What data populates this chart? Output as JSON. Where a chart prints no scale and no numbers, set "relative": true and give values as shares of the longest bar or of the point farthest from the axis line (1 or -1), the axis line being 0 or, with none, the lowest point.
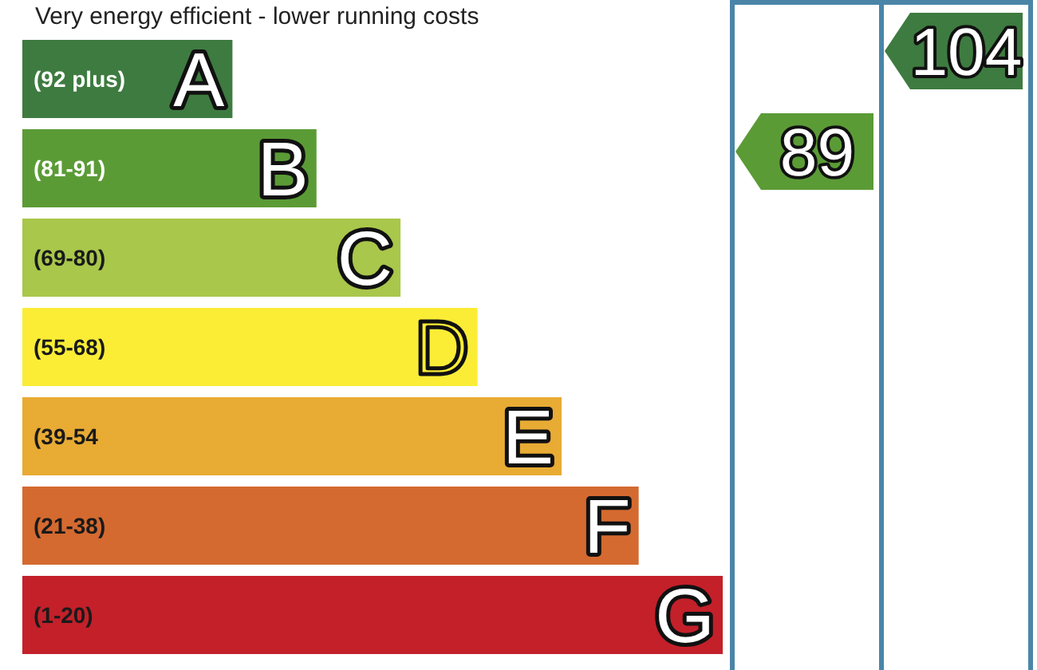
{
  "chart_data": {
    "type": "bar",
    "orientation": "horizontal",
    "relative": true,
    "title": "Very energy efficient - lower running costs",
    "categories": [
      "(92 plus)",
      "(81-91)",
      "(69-80)",
      "(55-68)",
      "(39-54",
      "(21-38)",
      "(1-20)"
    ],
    "values": [
      0.3,
      0.42,
      0.54,
      0.65,
      0.77,
      0.88,
      1
    ],
    "colors": [
      "#3e7b40",
      "#5b9b36",
      "#a9c74b",
      "#fbed36",
      "#e8ab34",
      "#d46a30",
      "#c3202a"
    ],
    "annotations": [
      {
        "text": "A",
        "x": 0.3,
        "y": "(92 plus)"
      },
      {
        "text": "B",
        "x": 0.42,
        "y": "(81-91)"
      },
      {
        "text": "C",
        "x": 0.54,
        "y": "(69-80)"
      },
      {
        "text": "D",
        "x": 0.65,
        "y": "(55-68)"
      },
      {
        "text": "E",
        "x": 0.77,
        "y": "(39-54"
      },
      {
        "text": "F",
        "x": 0.88,
        "y": "(21-38)"
      },
      {
        "text": "G",
        "x": 1,
        "y": "(1-20)"
      },
      "89",
      "104"
    ]
  }
}
